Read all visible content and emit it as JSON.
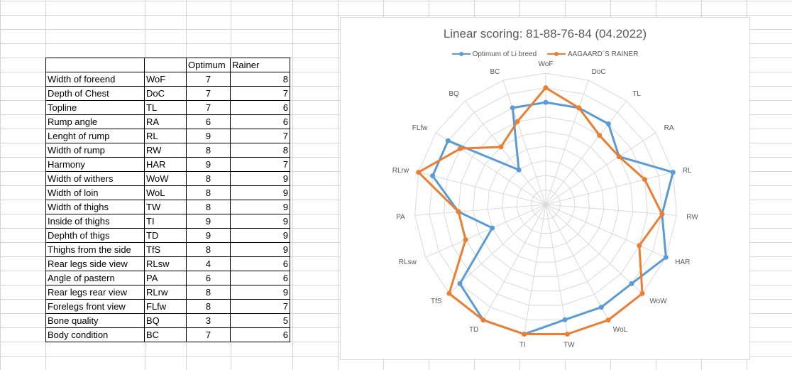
{
  "table": {
    "headers": [
      "",
      "",
      "Optimum",
      "Rainer"
    ],
    "rows": [
      {
        "name": "Width of foreend",
        "abbr": "WoF",
        "optimum": "7",
        "rainer": "8"
      },
      {
        "name": "Depth of Chest",
        "abbr": "DoC",
        "optimum": "7",
        "rainer": "7"
      },
      {
        "name": "Topline",
        "abbr": "TL",
        "optimum": "7",
        "rainer": "6"
      },
      {
        "name": "Rump angle",
        "abbr": "RA",
        "optimum": "6",
        "rainer": "6"
      },
      {
        "name": "Lenght of rump",
        "abbr": "RL",
        "optimum": "9",
        "rainer": "7"
      },
      {
        "name": "Width of rump",
        "abbr": "RW",
        "optimum": "8",
        "rainer": "8"
      },
      {
        "name": "Harmony",
        "abbr": "HAR",
        "optimum": "9",
        "rainer": "7"
      },
      {
        "name": "Width of withers",
        "abbr": "WoW",
        "optimum": "8",
        "rainer": "9"
      },
      {
        "name": "Width of loin",
        "abbr": "WoL",
        "optimum": "8",
        "rainer": "9"
      },
      {
        "name": "Width of thighs",
        "abbr": "TW",
        "optimum": "8",
        "rainer": "9"
      },
      {
        "name": "Inside of thighs",
        "abbr": "TI",
        "optimum": "9",
        "rainer": "9"
      },
      {
        "name": "Dephth of thigs",
        "abbr": "TD",
        "optimum": "9",
        "rainer": "9"
      },
      {
        "name": "Thighs from the side",
        "abbr": "TfS",
        "optimum": "8",
        "rainer": "9"
      },
      {
        "name": "Rear legs side view",
        "abbr": "RLsw",
        "optimum": "4",
        "rainer": "6"
      },
      {
        "name": "Angle of pastern",
        "abbr": "PA",
        "optimum": "6",
        "rainer": "6"
      },
      {
        "name": "Rear legs rear view",
        "abbr": "RLrw",
        "optimum": "8",
        "rainer": "9"
      },
      {
        "name": "Forelegs front view",
        "abbr": "FLfw",
        "optimum": "8",
        "rainer": "7"
      },
      {
        "name": "Bone quality",
        "abbr": "BQ",
        "optimum": "3",
        "rainer": "5"
      },
      {
        "name": "Body condition",
        "abbr": "BC",
        "optimum": "7",
        "rainer": "6"
      }
    ]
  },
  "chart_data": {
    "type": "radar",
    "title": "Linear scoring: 81-88-76-84  (04.2022)",
    "categories": [
      "WoF",
      "DoC",
      "TL",
      "RA",
      "RL",
      "RW",
      "HAR",
      "WoW",
      "WoL",
      "TW",
      "TI",
      "TD",
      "TfS",
      "RLsw",
      "PA",
      "RLrw",
      "FLfw",
      "BQ",
      "BC"
    ],
    "series": [
      {
        "name": "Optimum of Li breed",
        "color": "#5b9bd5",
        "values": [
          7,
          7,
          7,
          6,
          9,
          8,
          9,
          8,
          8,
          8,
          9,
          9,
          8,
          4,
          6,
          8,
          8,
          3,
          7
        ]
      },
      {
        "name": "AAGAARD´S RAINER",
        "color": "#ed7d31",
        "values": [
          8,
          7,
          6,
          6,
          7,
          8,
          7,
          9,
          9,
          9,
          9,
          9,
          9,
          6,
          6,
          9,
          7,
          5,
          6
        ]
      }
    ],
    "rlim": [
      0,
      9
    ],
    "grid": true,
    "legend_position": "top"
  }
}
